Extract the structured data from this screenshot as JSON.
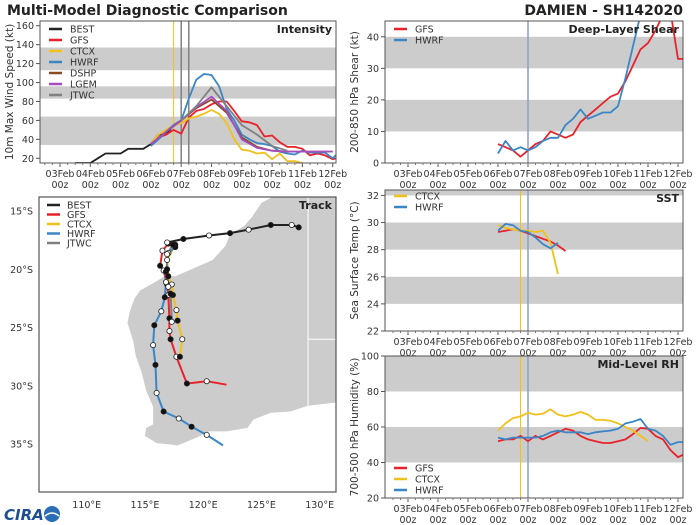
{
  "header": {
    "title": "Multi-Model Diagnostic Comparison",
    "storm": "DAMIEN - SH142020"
  },
  "colors": {
    "BEST": "#222222",
    "GFS": "#e8222a",
    "CTCX": "#f2c01a",
    "HWRF": "#3a86c6",
    "DSHP": "#8b4a22",
    "LGEM": "#a64cc2",
    "JTWC": "#808080",
    "band": "#cccccc",
    "land": "#cccccc",
    "now_line": "#8f9fc4",
    "ctcx_line": "#f2c01a"
  },
  "time_ticks": [
    "03Feb|00z",
    "04Feb|00z",
    "05Feb|00z",
    "06Feb|00z",
    "07Feb|00z",
    "08Feb|00z",
    "09Feb|00z",
    "10Feb|00z",
    "11Feb|00z",
    "12Feb|00z"
  ],
  "chart_data": [
    {
      "id": "intensity",
      "type": "line",
      "title": "Intensity",
      "ylabel": "10m Max Wind Speed (kt)",
      "ylim": [
        15,
        165
      ],
      "yticks": [
        20,
        40,
        60,
        80,
        100,
        120,
        140,
        160
      ],
      "bands": [
        [
          34,
          64
        ],
        [
          83,
          96
        ],
        [
          113,
          137
        ]
      ],
      "vlines": [
        {
          "time": "06Feb 18z",
          "color": "CTCX"
        },
        {
          "time": "07Feb 00z",
          "color": "JTWC"
        },
        {
          "time": "07Feb 06z",
          "color": "JTWC"
        }
      ],
      "legend": "top-left",
      "series": [
        {
          "name": "BEST",
          "start": "03Feb 12z",
          "step_hours": 6,
          "values": [
            15,
            15,
            15,
            20,
            25,
            25,
            25,
            30,
            30,
            30,
            35,
            45,
            45,
            55,
            60
          ]
        },
        {
          "name": "GFS",
          "start": "06Feb 00z",
          "step_hours": 6,
          "values": [
            33,
            42,
            45,
            50,
            46,
            63,
            70,
            72,
            77,
            80,
            80,
            70,
            59,
            58,
            55,
            43,
            44,
            37,
            32,
            32,
            30,
            23,
            25,
            23,
            19,
            21
          ]
        },
        {
          "name": "CTCX",
          "start": "06Feb 00z",
          "step_hours": 6,
          "values": [
            35,
            45,
            50,
            55,
            57,
            62,
            64,
            67,
            71,
            67,
            57,
            40,
            29,
            28,
            25,
            26,
            19,
            25,
            17,
            17,
            15
          ]
        },
        {
          "name": "HWRF",
          "start": "06Feb 00z",
          "step_hours": 6,
          "values": [
            33,
            40,
            48,
            55,
            60,
            83,
            103,
            109,
            108,
            96,
            72,
            60,
            45,
            40,
            36,
            35,
            33,
            27,
            25,
            24,
            28,
            26,
            26,
            26,
            20,
            28
          ]
        },
        {
          "name": "DSHP",
          "start": "06Feb 00z",
          "step_hours": 12,
          "values": [
            35,
            48,
            60,
            73,
            82,
            68,
            42,
            32,
            28,
            27,
            27,
            27,
            27
          ]
        },
        {
          "name": "LGEM",
          "start": "06Feb 00z",
          "step_hours": 12,
          "values": [
            35,
            48,
            60,
            74,
            85,
            70,
            40,
            31,
            28,
            27,
            27,
            27,
            27
          ]
        },
        {
          "name": "JTWC",
          "start": "07Feb 00z",
          "step_hours": 12,
          "values": [
            60,
            75,
            95,
            75,
            55,
            45,
            33,
            28
          ]
        }
      ]
    },
    {
      "id": "shear",
      "type": "line",
      "title": "Deep-Layer Shear",
      "ylabel": "200-850 hPa Shear (kt)",
      "ylim": [
        0,
        45
      ],
      "yticks": [
        0,
        10,
        20,
        30,
        40
      ],
      "bands": [
        [
          10,
          20
        ],
        [
          30,
          40
        ]
      ],
      "vlines": [
        {
          "time": "07Feb 00z",
          "color": "now_line"
        }
      ],
      "legend": "top-left",
      "series": [
        {
          "name": "GFS",
          "start": "06Feb 00z",
          "step_hours": 6,
          "values": [
            6,
            5,
            4,
            2,
            4,
            6,
            7,
            10,
            9,
            8,
            9,
            13,
            15,
            17,
            19,
            21,
            22,
            26,
            31,
            36,
            38,
            42,
            47,
            48,
            33,
            33
          ]
        },
        {
          "name": "HWRF",
          "start": "06Feb 00z",
          "step_hours": 6,
          "values": [
            3,
            7,
            4,
            5,
            4,
            5,
            7,
            8,
            8,
            12,
            14,
            17,
            14,
            15,
            16,
            16,
            18,
            27,
            37,
            47
          ]
        }
      ]
    },
    {
      "id": "sst",
      "type": "line",
      "title": "SST",
      "ylabel": "Sea Surface Temp (°C)",
      "ylim": [
        22,
        32.4
      ],
      "yticks": [
        22,
        24,
        26,
        28,
        30,
        32
      ],
      "bands": [
        [
          24,
          26
        ],
        [
          28,
          30
        ],
        [
          32,
          34
        ]
      ],
      "vlines": [
        {
          "time": "06Feb 18z",
          "color": "ctcx_line"
        },
        {
          "time": "07Feb 00z",
          "color": "now_line"
        }
      ],
      "legend": "top-left",
      "series": [
        {
          "name": "GFS",
          "start": "06Feb 00z",
          "step_hours": 6,
          "values": [
            29.3,
            29.4,
            29.5,
            29.4,
            29.2,
            29.0,
            28.8,
            28.6,
            28.3,
            27.9
          ]
        },
        {
          "name": "CTCX",
          "start": "06Feb 00z",
          "step_hours": 6,
          "values": [
            29.8,
            29.6,
            29.5,
            29.4,
            29.4,
            29.3,
            29.4,
            28.5,
            26.2
          ]
        },
        {
          "name": "HWRF",
          "start": "06Feb 00z",
          "step_hours": 6,
          "values": [
            29.4,
            29.9,
            29.8,
            29.4,
            29.3,
            28.9,
            28.4,
            28.1,
            28.5
          ]
        }
      ]
    },
    {
      "id": "rh",
      "type": "line",
      "title": "Mid-Level RH",
      "ylabel": "700-500 hPa Humidity (%)",
      "ylim": [
        20,
        100
      ],
      "yticks": [
        20,
        40,
        60,
        80,
        100
      ],
      "bands": [
        [
          40,
          60
        ],
        [
          80,
          100
        ]
      ],
      "vlines": [
        {
          "time": "06Feb 18z",
          "color": "ctcx_line"
        },
        {
          "time": "07Feb 00z",
          "color": "now_line"
        }
      ],
      "legend": "bottom-left",
      "series": [
        {
          "name": "GFS",
          "start": "06Feb 00z",
          "step_hours": 6,
          "values": [
            52,
            53,
            53,
            55,
            52,
            55,
            53,
            55,
            57,
            59,
            58,
            55,
            53,
            52,
            51,
            51,
            52,
            53,
            56,
            59.5,
            59,
            55,
            53,
            47,
            43,
            45
          ]
        },
        {
          "name": "CTCX",
          "start": "06Feb 00z",
          "step_hours": 6,
          "values": [
            58,
            62,
            65,
            66,
            68,
            67,
            67.5,
            70,
            67,
            66,
            67,
            68.5,
            67,
            64,
            64,
            63.5,
            62,
            60,
            58,
            55,
            52
          ]
        },
        {
          "name": "HWRF",
          "start": "06Feb 00z",
          "step_hours": 6,
          "values": [
            54,
            53,
            54,
            54,
            54,
            54,
            55,
            57,
            58,
            57,
            57,
            57,
            56,
            57,
            57.5,
            58,
            59,
            62,
            63,
            64.5,
            59,
            58,
            55,
            50,
            51.5,
            51.5
          ]
        }
      ]
    },
    {
      "id": "track",
      "type": "map",
      "title": "Track",
      "lon_ticks": [
        "110°E",
        "115°E",
        "120°E",
        "125°E",
        "130°E"
      ],
      "lat_ticks": [
        "15°S",
        "20°S",
        "25°S",
        "30°S",
        "35°S"
      ],
      "legend": "top-left",
      "tracks": [
        {
          "name": "BEST",
          "points": [
            [
              128.2,
              -16.4
            ],
            [
              127.6,
              -16.2
            ],
            [
              125.8,
              -16.2
            ],
            [
              123.9,
              -16.6
            ],
            [
              122.3,
              -16.9
            ],
            [
              120.5,
              -17.1
            ],
            [
              118.3,
              -17.4
            ],
            [
              116.9,
              -17.7
            ]
          ]
        },
        {
          "name": "GFS",
          "points": [
            [
              117,
              -17.8
            ],
            [
              116.5,
              -18.4
            ],
            [
              116.3,
              -19.7
            ],
            [
              116.6,
              -20.1
            ],
            [
              116.9,
              -21.3
            ],
            [
              117,
              -22.2
            ],
            [
              117.1,
              -24.2
            ],
            [
              117.1,
              -25.3
            ],
            [
              117.2,
              -26
            ],
            [
              117.7,
              -27.5
            ],
            [
              118.6,
              -29.8
            ],
            [
              120.3,
              -29.6
            ],
            [
              122,
              -29.9
            ]
          ]
        },
        {
          "name": "CTCX",
          "points": [
            [
              117.6,
              -17.9
            ],
            [
              116.9,
              -19.2
            ],
            [
              117,
              -20.6
            ],
            [
              117.3,
              -21.3
            ],
            [
              117.4,
              -22.2
            ],
            [
              117.7,
              -23.5
            ],
            [
              117.8,
              -24.4
            ],
            [
              118.2,
              -26
            ],
            [
              118,
              -27.5
            ]
          ]
        },
        {
          "name": "HWRF",
          "points": [
            [
              117.6,
              -18.1
            ],
            [
              117,
              -18.6
            ],
            [
              116.8,
              -20.2
            ],
            [
              116.8,
              -21.1
            ],
            [
              116.7,
              -22.4
            ],
            [
              116.4,
              -23.6
            ],
            [
              115.8,
              -24.8
            ],
            [
              115.7,
              -26.5
            ],
            [
              115.9,
              -28.2
            ],
            [
              116,
              -30.6
            ],
            [
              116.6,
              -32.2
            ],
            [
              117.9,
              -32.8
            ],
            [
              119,
              -33.5
            ],
            [
              120.3,
              -34.2
            ],
            [
              121.7,
              -35.1
            ]
          ]
        },
        {
          "name": "JTWC",
          "points": [
            [
              117.4,
              -17.9
            ],
            [
              116.9,
              -18.7
            ],
            [
              116.9,
              -20
            ],
            [
              117,
              -21.5
            ],
            [
              117.2,
              -22.1
            ],
            [
              117.3,
              -24.5
            ]
          ]
        }
      ]
    }
  ],
  "logo": "CIRA"
}
